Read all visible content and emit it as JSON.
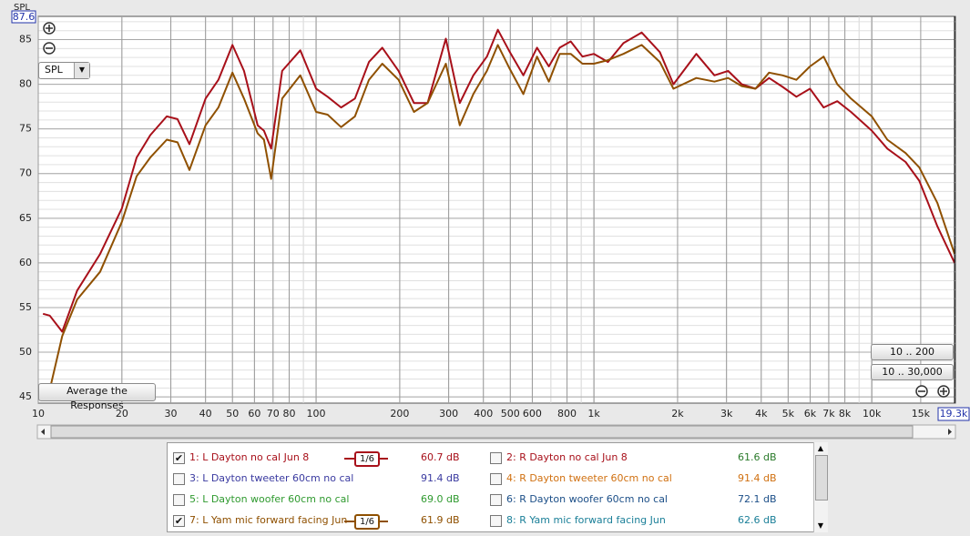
{
  "chart_data": {
    "type": "line",
    "y_label": "SPL",
    "log_x": true,
    "grid": true,
    "xlim": [
      10,
      20000
    ],
    "ylim": [
      44.3,
      87.6
    ],
    "xticks": [
      10,
      20,
      30,
      40,
      50,
      60,
      70,
      80,
      100,
      200,
      300,
      400,
      500,
      600,
      800,
      {
        "value": 1000,
        "label": "1k"
      },
      {
        "value": 2000,
        "label": "2k"
      },
      {
        "value": 3000,
        "label": "3k"
      },
      {
        "value": 4000,
        "label": "4k"
      },
      {
        "value": 5000,
        "label": "5k"
      },
      {
        "value": 6000,
        "label": "6k"
      },
      {
        "value": 7000,
        "label": "7k"
      },
      {
        "value": 8000,
        "label": "8k"
      },
      {
        "value": 10000,
        "label": "10k"
      },
      {
        "value": 15000,
        "label": "15k"
      }
    ],
    "yticks": [
      45,
      50,
      55,
      60,
      65,
      70,
      75,
      80,
      85
    ],
    "cursor_x_label": "19.3k",
    "x": [
      10.4,
      11.0,
      12.2,
      13.8,
      16.7,
      20,
      22.6,
      25.3,
      29,
      31.7,
      35,
      40,
      44.5,
      50,
      55,
      61.6,
      64.9,
      68.9,
      75.5,
      87.7,
      100,
      110,
      123,
      138,
      155,
      173,
      198,
      225,
      252,
      293,
      329,
      368,
      412,
      451,
      498,
      557,
      624,
      688,
      753,
      825,
      909,
      1000,
      1123,
      1277,
      1485,
      1727,
      1933,
      2336,
      2715,
      3040,
      3405,
      3811,
      4268,
      4779,
      5352,
      5993,
      6711,
      7513,
      8414,
      10000,
      11375,
      13230,
      14816,
      17220,
      19870
    ],
    "series": [
      {
        "name": "1: L Dayton no cal Jun 8",
        "color": "#a8101a",
        "checked": true,
        "smoothing": "1/6",
        "level": "60.7 dB",
        "values": [
          54.3,
          54.1,
          52.3,
          56.9,
          61.0,
          66.1,
          71.8,
          74.3,
          76.4,
          76.1,
          73.3,
          78.4,
          80.5,
          84.4,
          81.5,
          75.4,
          74.8,
          72.8,
          81.5,
          83.8,
          79.5,
          78.6,
          77.4,
          78.4,
          82.5,
          84.1,
          81.5,
          77.9,
          77.9,
          85.1,
          77.9,
          81.0,
          83.1,
          86.1,
          83.6,
          81.0,
          84.1,
          82.0,
          84.1,
          84.8,
          83.1,
          83.4,
          82.5,
          84.6,
          85.8,
          83.6,
          80.0,
          83.4,
          81.0,
          81.5,
          80.0,
          79.5,
          80.7,
          79.7,
          78.6,
          79.5,
          77.4,
          78.1,
          76.9,
          74.8,
          72.8,
          71.3,
          69.2,
          64.1,
          60.0
        ]
      },
      {
        "name": "2: R Dayton no cal Jun 8",
        "color": "#a8101a",
        "checked": false,
        "level": "61.6 dB",
        "level_color": "#2a7a2a"
      },
      {
        "name": "3: L Dayton tweeter 60cm no cal",
        "color": "#3a3aa0",
        "checked": false,
        "level": "91.4 dB"
      },
      {
        "name": "4: R Dayton tweeter 60cm no cal",
        "color": "#d07010",
        "checked": false,
        "level": "91.4 dB"
      },
      {
        "name": "5: L Dayton woofer 60cm no cal",
        "color": "#2f9a2f",
        "checked": false,
        "level": "69.0 dB"
      },
      {
        "name": "6: R Dayton woofer 60cm no cal",
        "color": "#1c4f88",
        "checked": false,
        "level": "72.1 dB"
      },
      {
        "name": "7: L Yam mic forward facing Jun",
        "color": "#8f5000",
        "checked": true,
        "smoothing": "1/6",
        "level": "61.9 dB",
        "values": [
          null,
          45.8,
          51.8,
          55.9,
          59.0,
          64.6,
          69.7,
          71.8,
          73.8,
          73.5,
          70.4,
          75.4,
          77.4,
          81.3,
          78.4,
          74.5,
          73.8,
          69.4,
          78.4,
          81.0,
          76.9,
          76.6,
          75.2,
          76.4,
          80.5,
          82.3,
          80.5,
          76.9,
          77.9,
          82.3,
          75.4,
          78.9,
          81.5,
          84.4,
          81.7,
          78.9,
          83.1,
          80.3,
          83.4,
          83.4,
          82.3,
          82.3,
          82.7,
          83.4,
          84.4,
          82.5,
          79.5,
          80.7,
          80.3,
          80.7,
          79.8,
          79.5,
          81.3,
          81.0,
          80.5,
          82.0,
          83.1,
          80.0,
          78.4,
          76.4,
          73.8,
          72.3,
          70.7,
          66.7,
          61.0
        ]
      },
      {
        "name": "8: R Yam mic forward facing Jun",
        "color": "#1a7f98",
        "checked": false,
        "level": "62.6 dB"
      }
    ]
  },
  "controls": {
    "mode_select": "SPL",
    "average_button": "Average the Responses",
    "zoom_presets": [
      "10 .. 200",
      "10 .. 30,000"
    ]
  }
}
